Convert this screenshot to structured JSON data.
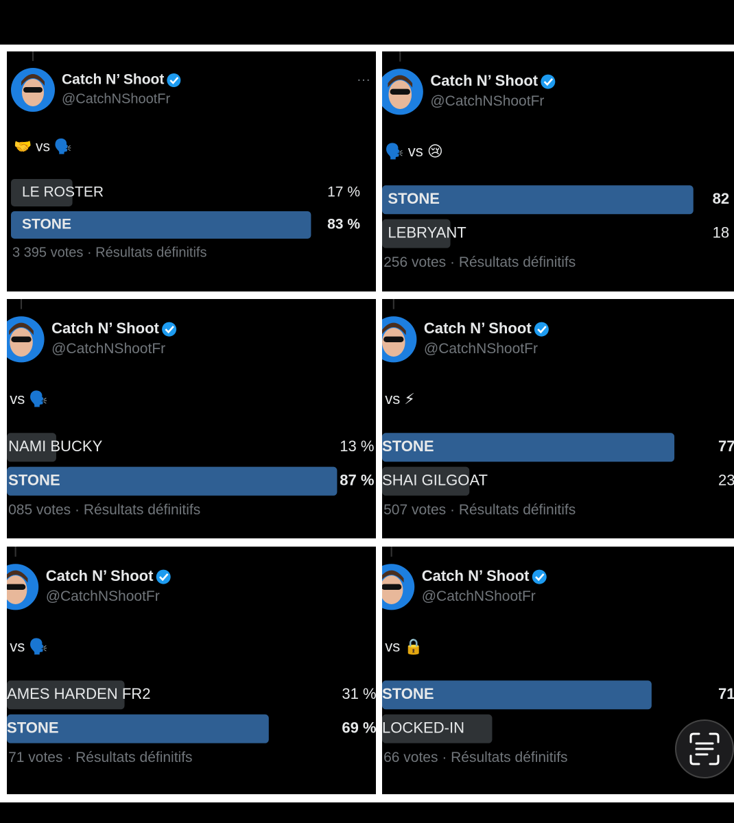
{
  "panels": [
    {
      "author": {
        "name": "Catch N’ Shoot",
        "handle": "@CatchNShootFr"
      },
      "text": "🤝 vs 🗣️",
      "options": [
        {
          "label": "LE ROSTER",
          "percent": 17,
          "percent_label": "17 %"
        },
        {
          "label": "STONE",
          "percent": 83,
          "percent_label": "83 %"
        }
      ],
      "footer": "3 395 votes · Résultats définitifs"
    },
    {
      "author": {
        "name": "Catch N’ Shoot",
        "handle": "@CatchNShootFr"
      },
      "text": "🗣️ vs 😢",
      "options": [
        {
          "label": "STONE",
          "percent": 82,
          "percent_label": "82"
        },
        {
          "label": "LEBRYANT",
          "percent": 18,
          "percent_label": "18"
        }
      ],
      "footer": "256 votes · Résultats définitifs"
    },
    {
      "author": {
        "name": "Catch N’ Shoot",
        "handle": "@CatchNShootFr"
      },
      "text": "vs 🗣️",
      "options": [
        {
          "label": "NAMI BUCKY",
          "percent": 13,
          "percent_label": "13 %"
        },
        {
          "label": "STONE",
          "percent": 87,
          "percent_label": "87 %"
        }
      ],
      "footer": "085 votes · Résultats définitifs"
    },
    {
      "author": {
        "name": "Catch N’ Shoot",
        "handle": "@CatchNShootFr"
      },
      "text": "vs ⚡",
      "options": [
        {
          "label": "STONE",
          "percent": 77,
          "percent_label": "77"
        },
        {
          "label": "SHAI GILGOAT",
          "percent": 23,
          "percent_label": "23"
        }
      ],
      "footer": "507 votes · Résultats définitifs"
    },
    {
      "author": {
        "name": "Catch N’ Shoot",
        "handle": "@CatchNShootFr"
      },
      "text": "vs 🗣️",
      "options": [
        {
          "label": "AMES HARDEN FR2",
          "percent": 31,
          "percent_label": "31 %"
        },
        {
          "label": "STONE",
          "percent": 69,
          "percent_label": "69 %"
        }
      ],
      "footer": "71 votes · Résultats définitifs"
    },
    {
      "author": {
        "name": "Catch N’ Shoot",
        "handle": "@CatchNShootFr"
      },
      "text": "vs 🔒",
      "options": [
        {
          "label": "STONE",
          "percent": 71,
          "percent_label": "71"
        },
        {
          "label": "LOCKED-IN",
          "percent": 29
        }
      ],
      "footer": "66 votes · Résultats définitifs"
    }
  ]
}
